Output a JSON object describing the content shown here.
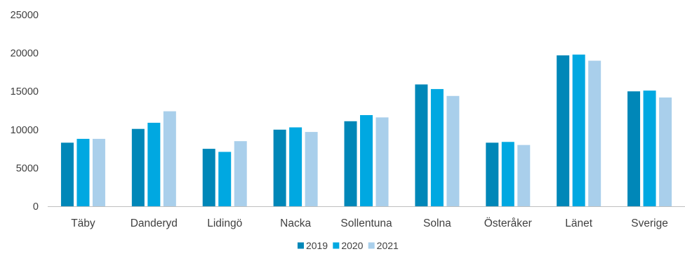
{
  "chart_data": {
    "type": "bar",
    "title": "",
    "xlabel": "",
    "ylabel": "",
    "categories": [
      "Täby",
      "Danderyd",
      "Lidingö",
      "Nacka",
      "Sollentuna",
      "Solna",
      "Österåker",
      "Länet",
      "Sverige"
    ],
    "series": [
      {
        "name": "2019",
        "color": "#0087B8",
        "values": [
          8300,
          10100,
          7500,
          10000,
          11100,
          15900,
          8300,
          19700,
          15000
        ]
      },
      {
        "name": "2020",
        "color": "#00A8E1",
        "values": [
          8800,
          10900,
          7100,
          10300,
          11900,
          15300,
          8400,
          19800,
          15100
        ]
      },
      {
        "name": "2021",
        "color": "#A9CFEB",
        "values": [
          8800,
          12400,
          8500,
          9700,
          11600,
          14400,
          8000,
          19000,
          14200
        ]
      }
    ],
    "ylim": [
      0,
      25000
    ],
    "yticks": [
      0,
      5000,
      10000,
      15000,
      20000,
      25000
    ],
    "grid": false,
    "legend_position": "bottom-center",
    "axis_color": "#BFBFBF",
    "text_color": "#404040"
  }
}
